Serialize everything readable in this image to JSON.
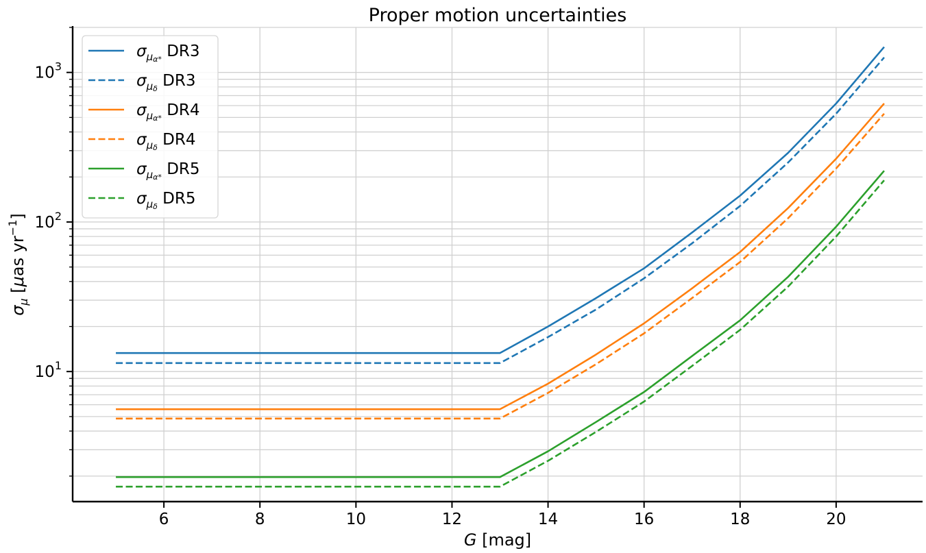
{
  "chart_data": {
    "type": "line",
    "title": "Proper motion uncertainties",
    "xlabel": "G [mag]",
    "ylabel": "σ_μ [μas yr^-1]",
    "x_scale": "linear",
    "y_scale": "log",
    "xlim": [
      4.1,
      21.8
    ],
    "ylim": [
      1.35,
      2000
    ],
    "x_ticks": [
      6,
      8,
      10,
      12,
      14,
      16,
      18,
      20
    ],
    "y_ticks": [
      10,
      100,
      1000
    ],
    "y_tick_labels": [
      "10",
      "10",
      "10"
    ],
    "y_tick_exponents": [
      "1",
      "2",
      "3"
    ],
    "grid": true,
    "legend_position": "top-left",
    "x": [
      5,
      6,
      7,
      8,
      9,
      10,
      11,
      12,
      13,
      14,
      15,
      16,
      17,
      18,
      19,
      20,
      21
    ],
    "series": [
      {
        "name": "σ_μα* DR3",
        "label_main": "σ",
        "label_sub": "μ",
        "label_subsub": "α*",
        "label_release": "DR3",
        "color": "#1f77b4",
        "dash": "solid",
        "values": [
          13.3,
          13.3,
          13.3,
          13.3,
          13.3,
          13.3,
          13.3,
          13.3,
          13.3,
          20,
          31,
          49,
          85,
          150,
          290,
          620,
          1480
        ]
      },
      {
        "name": "σ_μδ DR3",
        "label_main": "σ",
        "label_sub": "μ",
        "label_subsub": "δ",
        "label_release": "DR3",
        "color": "#1f77b4",
        "dash": "dashed",
        "values": [
          11.4,
          11.4,
          11.4,
          11.4,
          11.4,
          11.4,
          11.4,
          11.4,
          11.4,
          17,
          26,
          42,
          72,
          128,
          250,
          530,
          1260
        ]
      },
      {
        "name": "σ_μα* DR4",
        "label_main": "σ",
        "label_sub": "μ",
        "label_subsub": "α*",
        "label_release": "DR4",
        "color": "#ff7f0e",
        "dash": "solid",
        "values": [
          5.6,
          5.6,
          5.6,
          5.6,
          5.6,
          5.6,
          5.6,
          5.6,
          5.6,
          8.3,
          13,
          21,
          36,
          63,
          124,
          265,
          620
        ]
      },
      {
        "name": "σ_μδ DR4",
        "label_main": "σ",
        "label_sub": "μ",
        "label_subsub": "δ",
        "label_release": "DR4",
        "color": "#ff7f0e",
        "dash": "dashed",
        "values": [
          4.85,
          4.85,
          4.85,
          4.85,
          4.85,
          4.85,
          4.85,
          4.85,
          4.85,
          7.2,
          11.2,
          18,
          31,
          54,
          106,
          228,
          530
        ]
      },
      {
        "name": "σ_μα* DR5",
        "label_main": "σ",
        "label_sub": "μ",
        "label_subsub": "α*",
        "label_release": "DR5",
        "color": "#2ca02c",
        "dash": "solid",
        "values": [
          1.97,
          1.97,
          1.97,
          1.97,
          1.97,
          1.97,
          1.97,
          1.97,
          1.97,
          2.93,
          4.6,
          7.3,
          12.7,
          22,
          43,
          93,
          220
        ]
      },
      {
        "name": "σ_μδ DR5",
        "label_main": "σ",
        "label_sub": "μ",
        "label_subsub": "δ",
        "label_release": "DR5",
        "color": "#2ca02c",
        "dash": "dashed",
        "values": [
          1.7,
          1.7,
          1.7,
          1.7,
          1.7,
          1.7,
          1.7,
          1.7,
          1.7,
          2.53,
          3.95,
          6.3,
          10.9,
          19,
          37,
          80,
          190
        ]
      }
    ]
  }
}
